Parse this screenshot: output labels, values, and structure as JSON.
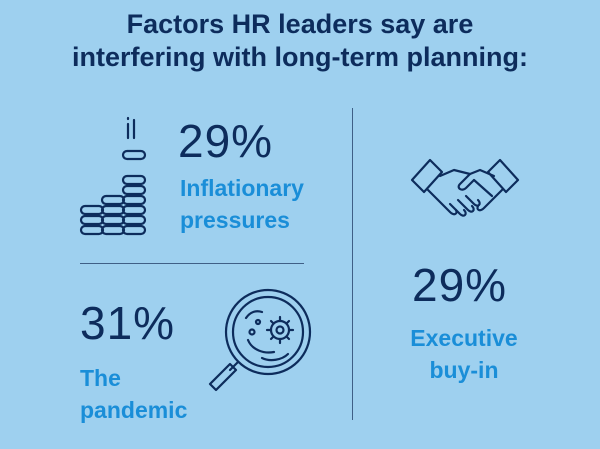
{
  "title": {
    "line1": "Factors HR leaders say are",
    "line2": "interfering with long-term planning:"
  },
  "factors": [
    {
      "value": "29%",
      "label_line1": "Inflationary",
      "label_line2": "pressures",
      "icon": "coin-stack-icon"
    },
    {
      "value": "31%",
      "label_line1": "The",
      "label_line2": "pandemic",
      "icon": "virus-magnifier-icon"
    },
    {
      "value": "29%",
      "label_line1": "Executive",
      "label_line2": "buy-in",
      "icon": "handshake-icon"
    }
  ],
  "colors": {
    "background": "#9ed0ef",
    "heading": "#0d2c5c",
    "accent": "#1a8ed8"
  }
}
